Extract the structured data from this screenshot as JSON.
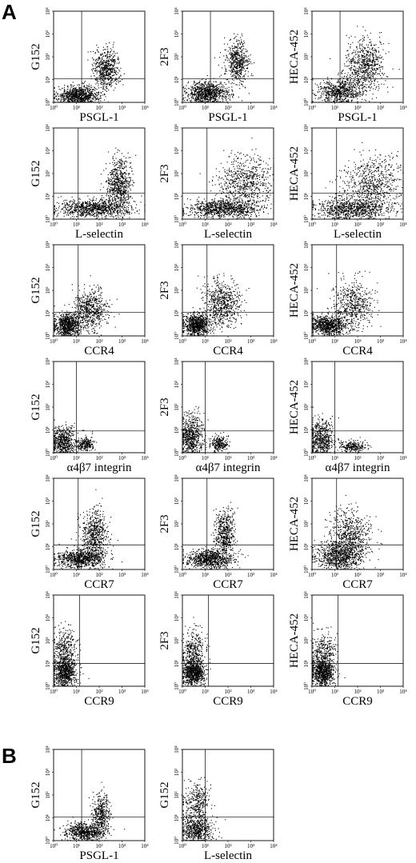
{
  "panels": [
    {
      "letter": "A"
    },
    {
      "letter": "B"
    }
  ],
  "colors": {
    "ink": "#000000",
    "background": "#ffffff"
  },
  "chart_data": [
    {
      "type": "scatter",
      "panel": "A",
      "xlabel": "PSGL-1",
      "ylabel": "G152",
      "xscale": "log",
      "yscale": "log",
      "xlim": [
        1,
        10000
      ],
      "ylim": [
        1,
        10000
      ],
      "x_ticks": [
        "10⁰",
        "10¹",
        "10²",
        "10³",
        "10⁴"
      ],
      "y_ticks": [
        "10⁰",
        "10¹",
        "10²",
        "10³",
        "10⁴"
      ],
      "quadrant_gate": {
        "x": 17,
        "y": 11
      },
      "clusters": [
        {
          "x": 12,
          "y": 2,
          "sx": 0.45,
          "sy": 0.22,
          "n": 900
        },
        {
          "x": 200,
          "y": 30,
          "sx": 0.3,
          "sy": 0.45,
          "n": 600
        }
      ]
    },
    {
      "type": "scatter",
      "panel": "A",
      "xlabel": "PSGL-1",
      "ylabel": "2F3",
      "xscale": "log",
      "yscale": "log",
      "xlim": [
        1,
        10000
      ],
      "ylim": [
        1,
        10000
      ],
      "x_ticks": [
        "10⁰",
        "10¹",
        "10²",
        "10³",
        "10⁴"
      ],
      "y_ticks": [
        "10⁰",
        "10¹",
        "10²",
        "10³",
        "10⁴"
      ],
      "quadrant_gate": {
        "x": 17,
        "y": 11
      },
      "clusters": [
        {
          "x": 12,
          "y": 2.5,
          "sx": 0.45,
          "sy": 0.25,
          "n": 900
        },
        {
          "x": 250,
          "y": 60,
          "sx": 0.25,
          "sy": 0.5,
          "n": 550
        }
      ]
    },
    {
      "type": "scatter",
      "panel": "A",
      "xlabel": "PSGL-1",
      "ylabel": "HECA-452",
      "xscale": "log",
      "yscale": "log",
      "xlim": [
        1,
        10000
      ],
      "ylim": [
        1,
        10000
      ],
      "x_ticks": [
        "10⁰",
        "10¹",
        "10²",
        "10³",
        "10⁴"
      ],
      "y_ticks": [
        "10⁰",
        "10¹",
        "10²",
        "10³",
        "10⁴"
      ],
      "quadrant_gate": {
        "x": 17,
        "y": 11
      },
      "clusters": [
        {
          "x": 15,
          "y": 3,
          "sx": 0.5,
          "sy": 0.3,
          "n": 700
        },
        {
          "x": 200,
          "y": 40,
          "sx": 0.45,
          "sy": 0.6,
          "n": 700
        }
      ]
    },
    {
      "type": "scatter",
      "panel": "A",
      "xlabel": "L-selectin",
      "ylabel": "G152",
      "xscale": "log",
      "yscale": "log",
      "xlim": [
        1,
        10000
      ],
      "ylim": [
        1,
        10000
      ],
      "x_ticks": [
        "10⁰",
        "10¹",
        "10²",
        "10³",
        "10⁴"
      ],
      "y_ticks": [
        "10⁰",
        "10¹",
        "10²",
        "10³",
        "10⁴"
      ],
      "quadrant_gate": {
        "x": 12,
        "y": 14
      },
      "clusters": [
        {
          "x": 60,
          "y": 3,
          "sx": 0.8,
          "sy": 0.2,
          "n": 900
        },
        {
          "x": 700,
          "y": 30,
          "sx": 0.3,
          "sy": 0.6,
          "n": 700
        }
      ]
    },
    {
      "type": "scatter",
      "panel": "A",
      "xlabel": "L-selectin",
      "ylabel": "2F3",
      "xscale": "log",
      "yscale": "log",
      "xlim": [
        1,
        10000
      ],
      "ylim": [
        1,
        10000
      ],
      "x_ticks": [
        "10⁰",
        "10¹",
        "10²",
        "10³",
        "10⁴"
      ],
      "y_ticks": [
        "10⁰",
        "10¹",
        "10²",
        "10³",
        "10⁴"
      ],
      "quadrant_gate": {
        "x": 12,
        "y": 14
      },
      "clusters": [
        {
          "x": 60,
          "y": 3,
          "sx": 0.8,
          "sy": 0.2,
          "n": 900
        },
        {
          "x": 600,
          "y": 40,
          "sx": 0.6,
          "sy": 0.6,
          "n": 700
        }
      ]
    },
    {
      "type": "scatter",
      "panel": "A",
      "xlabel": "L-selectin",
      "ylabel": "HECA-452",
      "xscale": "log",
      "yscale": "log",
      "xlim": [
        1,
        10000
      ],
      "ylim": [
        1,
        10000
      ],
      "x_ticks": [
        "10⁰",
        "10¹",
        "10²",
        "10³",
        "10⁴"
      ],
      "y_ticks": [
        "10⁰",
        "10¹",
        "10²",
        "10³",
        "10⁴"
      ],
      "quadrant_gate": {
        "x": 12,
        "y": 14
      },
      "clusters": [
        {
          "x": 60,
          "y": 3,
          "sx": 0.8,
          "sy": 0.25,
          "n": 900
        },
        {
          "x": 500,
          "y": 40,
          "sx": 0.7,
          "sy": 0.6,
          "n": 650
        }
      ]
    },
    {
      "type": "scatter",
      "panel": "A",
      "xlabel": "CCR4",
      "ylabel": "G152",
      "xscale": "log",
      "yscale": "log",
      "xlim": [
        1,
        10000
      ],
      "ylim": [
        1,
        10000
      ],
      "x_ticks": [
        "10⁰",
        "10¹",
        "10²",
        "10³",
        "10⁴"
      ],
      "y_ticks": [
        "10⁰",
        "10¹",
        "10²",
        "10³",
        "10⁴"
      ],
      "quadrant_gate": {
        "x": 12,
        "y": 11
      },
      "clusters": [
        {
          "x": 4,
          "y": 3,
          "sx": 0.3,
          "sy": 0.25,
          "n": 800
        },
        {
          "x": 40,
          "y": 15,
          "sx": 0.35,
          "sy": 0.45,
          "n": 600
        }
      ]
    },
    {
      "type": "scatter",
      "panel": "A",
      "xlabel": "CCR4",
      "ylabel": "2F3",
      "xscale": "log",
      "yscale": "log",
      "xlim": [
        1,
        10000
      ],
      "ylim": [
        1,
        10000
      ],
      "x_ticks": [
        "10⁰",
        "10¹",
        "10²",
        "10³",
        "10⁴"
      ],
      "y_ticks": [
        "10⁰",
        "10¹",
        "10²",
        "10³",
        "10⁴"
      ],
      "quadrant_gate": {
        "x": 12,
        "y": 11
      },
      "clusters": [
        {
          "x": 4,
          "y": 3,
          "sx": 0.3,
          "sy": 0.25,
          "n": 800
        },
        {
          "x": 50,
          "y": 25,
          "sx": 0.4,
          "sy": 0.5,
          "n": 650
        }
      ]
    },
    {
      "type": "scatter",
      "panel": "A",
      "xlabel": "CCR4",
      "ylabel": "HECA-452",
      "xscale": "log",
      "yscale": "log",
      "xlim": [
        1,
        10000
      ],
      "ylim": [
        1,
        10000
      ],
      "x_ticks": [
        "10⁰",
        "10¹",
        "10²",
        "10³",
        "10⁴"
      ],
      "y_ticks": [
        "10⁰",
        "10¹",
        "10²",
        "10³",
        "10⁴"
      ],
      "quadrant_gate": {
        "x": 12,
        "y": 11
      },
      "clusters": [
        {
          "x": 5,
          "y": 3,
          "sx": 0.4,
          "sy": 0.2,
          "n": 800
        },
        {
          "x": 60,
          "y": 25,
          "sx": 0.45,
          "sy": 0.55,
          "n": 550
        }
      ]
    },
    {
      "type": "scatter",
      "panel": "A",
      "xlabel": "α4β7 integrin",
      "ylabel": "G152",
      "xscale": "log",
      "yscale": "log",
      "xlim": [
        1,
        10000
      ],
      "ylim": [
        1,
        10000
      ],
      "x_ticks": [
        "10⁰",
        "10¹",
        "10²",
        "10³",
        "10⁴"
      ],
      "y_ticks": [
        "10⁰",
        "10¹",
        "10²",
        "10³",
        "10⁴"
      ],
      "quadrant_gate": {
        "x": 10,
        "y": 9
      },
      "clusters": [
        {
          "x": 2.5,
          "y": 3,
          "sx": 0.25,
          "sy": 0.35,
          "n": 600
        },
        {
          "x": 25,
          "y": 2.5,
          "sx": 0.2,
          "sy": 0.15,
          "n": 250
        }
      ]
    },
    {
      "type": "scatter",
      "panel": "A",
      "xlabel": "α4β7 integrin",
      "ylabel": "2F3",
      "xscale": "log",
      "yscale": "log",
      "xlim": [
        1,
        10000
      ],
      "ylim": [
        1,
        10000
      ],
      "x_ticks": [
        "10⁰",
        "10¹",
        "10²",
        "10³",
        "10⁴"
      ],
      "y_ticks": [
        "10⁰",
        "10¹",
        "10²",
        "10³",
        "10⁴"
      ],
      "quadrant_gate": {
        "x": 10,
        "y": 9
      },
      "clusters": [
        {
          "x": 2.5,
          "y": 5,
          "sx": 0.25,
          "sy": 0.5,
          "n": 650
        },
        {
          "x": 40,
          "y": 2.5,
          "sx": 0.2,
          "sy": 0.15,
          "n": 250
        }
      ]
    },
    {
      "type": "scatter",
      "panel": "A",
      "xlabel": "α4β7 integrin",
      "ylabel": "HECA-452",
      "xscale": "log",
      "yscale": "log",
      "xlim": [
        1,
        10000
      ],
      "ylim": [
        1,
        10000
      ],
      "x_ticks": [
        "10⁰",
        "10¹",
        "10²",
        "10³",
        "10⁴"
      ],
      "y_ticks": [
        "10⁰",
        "10¹",
        "10²",
        "10³",
        "10⁴"
      ],
      "quadrant_gate": {
        "x": 10,
        "y": 9
      },
      "clusters": [
        {
          "x": 2.5,
          "y": 4,
          "sx": 0.25,
          "sy": 0.45,
          "n": 600
        },
        {
          "x": 60,
          "y": 2,
          "sx": 0.3,
          "sy": 0.12,
          "n": 250
        }
      ]
    },
    {
      "type": "scatter",
      "panel": "A",
      "xlabel": "CCR7",
      "ylabel": "G152",
      "xscale": "log",
      "yscale": "log",
      "xlim": [
        1,
        10000
      ],
      "ylim": [
        1,
        10000
      ],
      "x_ticks": [
        "10⁰",
        "10¹",
        "10²",
        "10³",
        "10⁴"
      ],
      "y_ticks": [
        "10⁰",
        "10¹",
        "10²",
        "10³",
        "10⁴"
      ],
      "quadrant_gate": {
        "x": 12,
        "y": 12
      },
      "clusters": [
        {
          "x": 15,
          "y": 3,
          "sx": 0.5,
          "sy": 0.2,
          "n": 800
        },
        {
          "x": 60,
          "y": 30,
          "sx": 0.3,
          "sy": 0.55,
          "n": 650
        }
      ]
    },
    {
      "type": "scatter",
      "panel": "A",
      "xlabel": "CCR7",
      "ylabel": "2F3",
      "xscale": "log",
      "yscale": "log",
      "xlim": [
        1,
        10000
      ],
      "ylim": [
        1,
        10000
      ],
      "x_ticks": [
        "10⁰",
        "10¹",
        "10²",
        "10³",
        "10⁴"
      ],
      "y_ticks": [
        "10⁰",
        "10¹",
        "10²",
        "10³",
        "10⁴"
      ],
      "quadrant_gate": {
        "x": 12,
        "y": 12
      },
      "clusters": [
        {
          "x": 15,
          "y": 3,
          "sx": 0.5,
          "sy": 0.2,
          "n": 800
        },
        {
          "x": 70,
          "y": 40,
          "sx": 0.2,
          "sy": 0.55,
          "n": 550
        }
      ]
    },
    {
      "type": "scatter",
      "panel": "A",
      "xlabel": "CCR7",
      "ylabel": "HECA-452",
      "xscale": "log",
      "yscale": "log",
      "xlim": [
        1,
        10000
      ],
      "ylim": [
        1,
        10000
      ],
      "x_ticks": [
        "10⁰",
        "10¹",
        "10²",
        "10³",
        "10⁴"
      ],
      "y_ticks": [
        "10⁰",
        "10¹",
        "10²",
        "10³",
        "10⁴"
      ],
      "quadrant_gate": {
        "x": 12,
        "y": 12
      },
      "clusters": [
        {
          "x": 15,
          "y": 4,
          "sx": 0.5,
          "sy": 0.3,
          "n": 800
        },
        {
          "x": 50,
          "y": 30,
          "sx": 0.45,
          "sy": 0.55,
          "n": 650
        }
      ]
    },
    {
      "type": "scatter",
      "panel": "A",
      "xlabel": "CCR9",
      "ylabel": "G152",
      "xscale": "log",
      "yscale": "log",
      "xlim": [
        1,
        10000
      ],
      "ylim": [
        1,
        10000
      ],
      "x_ticks": [
        "10⁰",
        "10¹",
        "10²",
        "10³",
        "10⁴"
      ],
      "y_ticks": [
        "10⁰",
        "10¹",
        "10²",
        "10³",
        "10⁴"
      ],
      "quadrant_gate": {
        "x": 14,
        "y": 10
      },
      "clusters": [
        {
          "x": 3,
          "y": 4,
          "sx": 0.25,
          "sy": 0.35,
          "n": 800
        },
        {
          "x": 3,
          "y": 40,
          "sx": 0.25,
          "sy": 0.45,
          "n": 350
        }
      ]
    },
    {
      "type": "scatter",
      "panel": "A",
      "xlabel": "CCR9",
      "ylabel": "2F3",
      "xscale": "log",
      "yscale": "log",
      "xlim": [
        1,
        10000
      ],
      "ylim": [
        1,
        10000
      ],
      "x_ticks": [
        "10⁰",
        "10¹",
        "10²",
        "10³",
        "10⁴"
      ],
      "y_ticks": [
        "10⁰",
        "10¹",
        "10²",
        "10³",
        "10⁴"
      ],
      "quadrant_gate": {
        "x": 14,
        "y": 10
      },
      "clusters": [
        {
          "x": 3,
          "y": 4,
          "sx": 0.25,
          "sy": 0.3,
          "n": 800
        },
        {
          "x": 3,
          "y": 40,
          "sx": 0.25,
          "sy": 0.45,
          "n": 350
        }
      ]
    },
    {
      "type": "scatter",
      "panel": "A",
      "xlabel": "CCR9",
      "ylabel": "HECA-452",
      "xscale": "log",
      "yscale": "log",
      "xlim": [
        1,
        10000
      ],
      "ylim": [
        1,
        10000
      ],
      "x_ticks": [
        "10⁰",
        "10¹",
        "10²",
        "10³",
        "10⁴"
      ],
      "y_ticks": [
        "10⁰",
        "10¹",
        "10²",
        "10³",
        "10⁴"
      ],
      "quadrant_gate": {
        "x": 14,
        "y": 10
      },
      "clusters": [
        {
          "x": 3,
          "y": 4,
          "sx": 0.25,
          "sy": 0.3,
          "n": 800
        },
        {
          "x": 3,
          "y": 30,
          "sx": 0.3,
          "sy": 0.45,
          "n": 350
        }
      ]
    },
    {
      "type": "scatter",
      "panel": "B",
      "xlabel": "PSGL-1",
      "ylabel": "G152",
      "xscale": "log",
      "yscale": "log",
      "xlim": [
        1,
        10000
      ],
      "ylim": [
        1,
        10000
      ],
      "x_ticks": [
        "10⁰",
        "10¹",
        "10²",
        "10³",
        "10⁴"
      ],
      "y_ticks": [
        "10⁰",
        "10¹",
        "10²",
        "10³",
        "10⁴"
      ],
      "quadrant_gate": {
        "x": 17,
        "y": 11
      },
      "clusters": [
        {
          "x": 25,
          "y": 2.5,
          "sx": 0.45,
          "sy": 0.2,
          "n": 700
        },
        {
          "x": 120,
          "y": 15,
          "sx": 0.2,
          "sy": 0.45,
          "n": 400
        }
      ]
    },
    {
      "type": "scatter",
      "panel": "B",
      "xlabel": "L-selectin",
      "ylabel": "G152",
      "xscale": "log",
      "yscale": "log",
      "xlim": [
        1,
        10000
      ],
      "ylim": [
        1,
        10000
      ],
      "x_ticks": [
        "10⁰",
        "10¹",
        "10²",
        "10³",
        "10⁴"
      ],
      "y_ticks": [
        "10⁰",
        "10¹",
        "10²",
        "10³",
        "10⁴"
      ],
      "quadrant_gate": {
        "x": 10,
        "y": 11
      },
      "clusters": [
        {
          "x": 4,
          "y": 3,
          "sx": 0.35,
          "sy": 0.3,
          "n": 600
        },
        {
          "x": 4,
          "y": 40,
          "sx": 0.3,
          "sy": 0.45,
          "n": 350
        }
      ]
    }
  ]
}
